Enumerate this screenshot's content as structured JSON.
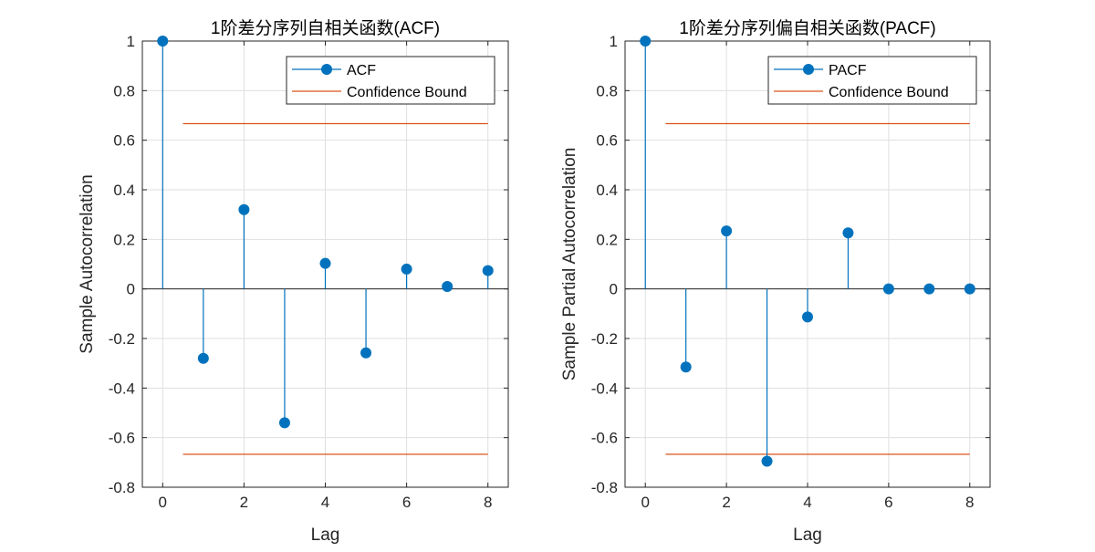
{
  "chart_data": [
    {
      "type": "stem",
      "title": "1阶差分序列自相关函数(ACF)",
      "xlabel": "Lag",
      "ylabel": "Sample Autocorrelation",
      "xlim": [
        -0.5,
        8.5
      ],
      "ylim": [
        -0.8,
        1
      ],
      "xticks": [
        0,
        2,
        4,
        6,
        8
      ],
      "xtick_labels": [
        "0",
        "2",
        "4",
        "6",
        "8"
      ],
      "yticks": [
        -0.8,
        -0.6,
        -0.4,
        -0.2,
        0,
        0.2,
        0.4,
        0.6,
        0.8,
        1
      ],
      "ytick_labels": [
        "-0.8",
        "-0.6",
        "-0.4",
        "-0.2",
        "0",
        "0.2",
        "0.4",
        "0.6",
        "0.8",
        "1"
      ],
      "grid": true,
      "series": [
        {
          "name": "ACF",
          "x": [
            0,
            1,
            2,
            3,
            4,
            5,
            6,
            7,
            8
          ],
          "values": [
            1,
            -0.28,
            0.32,
            -0.54,
            0.103,
            -0.258,
            0.08,
            0.01,
            0.074
          ],
          "color": "#0072BD"
        }
      ],
      "bounds": {
        "name": "Confidence Bound",
        "upper": 0.667,
        "lower": -0.667,
        "x_range": [
          0.5,
          8
        ],
        "color": "#D95319"
      },
      "legend": [
        "ACF",
        "Confidence Bound"
      ],
      "legend_position": "top-right"
    },
    {
      "type": "stem",
      "title": "1阶差分序列偏自相关函数(PACF)",
      "xlabel": "Lag",
      "ylabel": "Sample Partial Autocorrelation",
      "xlim": [
        -0.5,
        8.5
      ],
      "ylim": [
        -0.8,
        1
      ],
      "xticks": [
        0,
        2,
        4,
        6,
        8
      ],
      "xtick_labels": [
        "0",
        "2",
        "4",
        "6",
        "8"
      ],
      "yticks": [
        -0.8,
        -0.6,
        -0.4,
        -0.2,
        0,
        0.2,
        0.4,
        0.6,
        0.8,
        1
      ],
      "ytick_labels": [
        "-0.8",
        "-0.6",
        "-0.4",
        "-0.2",
        "0",
        "0.2",
        "0.4",
        "0.6",
        "0.8",
        "1"
      ],
      "grid": true,
      "series": [
        {
          "name": "PACF",
          "x": [
            0,
            1,
            2,
            3,
            4,
            5,
            6,
            7,
            8
          ],
          "values": [
            1,
            -0.315,
            0.234,
            -0.695,
            -0.113,
            0.226,
            0,
            0,
            0
          ],
          "color": "#0072BD"
        }
      ],
      "bounds": {
        "name": "Confidence Bound",
        "upper": 0.667,
        "lower": -0.667,
        "x_range": [
          0.5,
          8
        ],
        "color": "#D95319"
      },
      "legend": [
        "PACF",
        "Confidence Bound"
      ],
      "legend_position": "top-right"
    }
  ]
}
